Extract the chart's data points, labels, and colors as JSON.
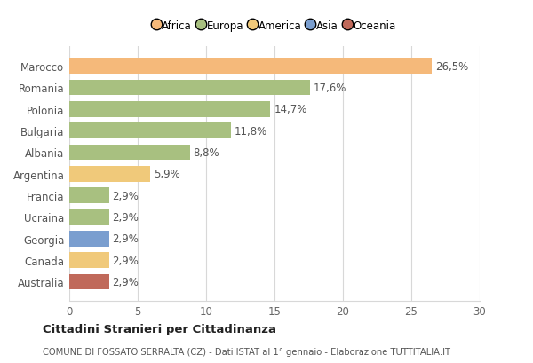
{
  "countries": [
    "Australia",
    "Canada",
    "Georgia",
    "Ucraina",
    "Francia",
    "Argentina",
    "Albania",
    "Bulgaria",
    "Polonia",
    "Romania",
    "Marocco"
  ],
  "values": [
    2.9,
    2.9,
    2.9,
    2.9,
    2.9,
    5.9,
    8.8,
    11.8,
    14.7,
    17.6,
    26.5
  ],
  "labels": [
    "2,9%",
    "2,9%",
    "2,9%",
    "2,9%",
    "2,9%",
    "5,9%",
    "8,8%",
    "11,8%",
    "14,7%",
    "17,6%",
    "26,5%"
  ],
  "colors": [
    "#c0695a",
    "#f0c97a",
    "#7a9ecf",
    "#a8c080",
    "#a8c080",
    "#f0c97a",
    "#a8c080",
    "#a8c080",
    "#a8c080",
    "#a8c080",
    "#f5b97a"
  ],
  "legend": [
    {
      "label": "Africa",
      "color": "#f5b97a"
    },
    {
      "label": "Europa",
      "color": "#a8c080"
    },
    {
      "label": "America",
      "color": "#f0c97a"
    },
    {
      "label": "Asia",
      "color": "#7a9ecf"
    },
    {
      "label": "Oceania",
      "color": "#c0695a"
    }
  ],
  "xlim": [
    0,
    30
  ],
  "xticks": [
    0,
    5,
    10,
    15,
    20,
    25,
    30
  ],
  "title": "Cittadini Stranieri per Cittadinanza",
  "subtitle": "COMUNE DI FOSSATO SERRALTA (CZ) - Dati ISTAT al 1° gennaio - Elaborazione TUTTITALIA.IT",
  "background_color": "#ffffff",
  "bar_height": 0.72,
  "grid_color": "#d8d8d8",
  "label_fontsize": 8.5,
  "tick_fontsize": 8.5
}
